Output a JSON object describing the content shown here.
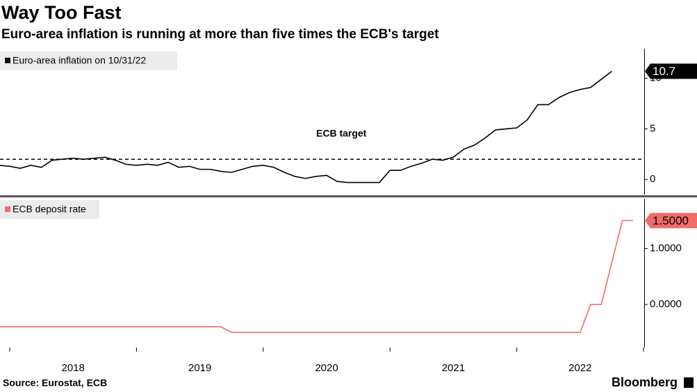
{
  "title": "Way Too Fast",
  "subtitle": "Euro-area inflation is running at more than five times the ECB's target",
  "source": "Source: Eurostat, ECB",
  "brand": "Bloomberg",
  "chart_data": [
    {
      "type": "line",
      "x": [
        "2017-12",
        "2018-01",
        "2018-02",
        "2018-03",
        "2018-04",
        "2018-05",
        "2018-06",
        "2018-07",
        "2018-08",
        "2018-09",
        "2018-10",
        "2018-11",
        "2018-12",
        "2019-01",
        "2019-02",
        "2019-03",
        "2019-04",
        "2019-05",
        "2019-06",
        "2019-07",
        "2019-08",
        "2019-09",
        "2019-10",
        "2019-11",
        "2019-12",
        "2020-01",
        "2020-02",
        "2020-03",
        "2020-04",
        "2020-05",
        "2020-06",
        "2020-07",
        "2020-08",
        "2020-09",
        "2020-10",
        "2020-11",
        "2020-12",
        "2021-01",
        "2021-02",
        "2021-03",
        "2021-04",
        "2021-05",
        "2021-06",
        "2021-07",
        "2021-08",
        "2021-09",
        "2021-10",
        "2021-11",
        "2021-12",
        "2022-01",
        "2022-02",
        "2022-03",
        "2022-04",
        "2022-05",
        "2022-06",
        "2022-07",
        "2022-08",
        "2022-09",
        "2022-10"
      ],
      "series": [
        {
          "name": "Euro-area inflation on 10/31/22",
          "color": "#000000",
          "values": [
            1.4,
            1.3,
            1.1,
            1.4,
            1.2,
            1.9,
            2.0,
            2.1,
            2.0,
            2.1,
            2.2,
            1.9,
            1.5,
            1.4,
            1.5,
            1.4,
            1.7,
            1.2,
            1.3,
            1.0,
            1.0,
            0.8,
            0.7,
            1.0,
            1.3,
            1.4,
            1.2,
            0.7,
            0.3,
            0.1,
            0.3,
            0.4,
            -0.2,
            -0.3,
            -0.3,
            -0.3,
            -0.3,
            0.9,
            0.9,
            1.3,
            1.6,
            2.0,
            1.9,
            2.2,
            3.0,
            3.4,
            4.1,
            4.9,
            5.0,
            5.1,
            5.9,
            7.4,
            7.4,
            8.1,
            8.6,
            8.9,
            9.1,
            9.9,
            10.7
          ]
        }
      ],
      "ylim": [
        -1.5,
        12.8
      ],
      "yticks": [
        0,
        5,
        10
      ],
      "target": {
        "value": 2,
        "label": "ECB target"
      }
    },
    {
      "type": "line",
      "x": [
        "2017-12",
        "2018-01",
        "2018-02",
        "2018-03",
        "2018-04",
        "2018-05",
        "2018-06",
        "2018-07",
        "2018-08",
        "2018-09",
        "2018-10",
        "2018-11",
        "2018-12",
        "2019-01",
        "2019-02",
        "2019-03",
        "2019-04",
        "2019-05",
        "2019-06",
        "2019-07",
        "2019-08",
        "2019-09",
        "2019-10",
        "2019-11",
        "2019-12",
        "2020-01",
        "2020-02",
        "2020-03",
        "2020-04",
        "2020-05",
        "2020-06",
        "2020-07",
        "2020-08",
        "2020-09",
        "2020-10",
        "2020-11",
        "2020-12",
        "2021-01",
        "2021-02",
        "2021-03",
        "2021-04",
        "2021-05",
        "2021-06",
        "2021-07",
        "2021-08",
        "2021-09",
        "2021-10",
        "2021-11",
        "2021-12",
        "2022-01",
        "2022-02",
        "2022-03",
        "2022-04",
        "2022-05",
        "2022-06",
        "2022-07",
        "2022-08",
        "2022-09",
        "2022-10",
        "2022-11",
        "2022-12"
      ],
      "series": [
        {
          "name": "ECB deposit rate",
          "color": "#f26b6b",
          "values": [
            -0.4,
            -0.4,
            -0.4,
            -0.4,
            -0.4,
            -0.4,
            -0.4,
            -0.4,
            -0.4,
            -0.4,
            -0.4,
            -0.4,
            -0.4,
            -0.4,
            -0.4,
            -0.4,
            -0.4,
            -0.4,
            -0.4,
            -0.4,
            -0.4,
            -0.4,
            -0.5,
            -0.5,
            -0.5,
            -0.5,
            -0.5,
            -0.5,
            -0.5,
            -0.5,
            -0.5,
            -0.5,
            -0.5,
            -0.5,
            -0.5,
            -0.5,
            -0.5,
            -0.5,
            -0.5,
            -0.5,
            -0.5,
            -0.5,
            -0.5,
            -0.5,
            -0.5,
            -0.5,
            -0.5,
            -0.5,
            -0.5,
            -0.5,
            -0.5,
            -0.5,
            -0.5,
            -0.5,
            -0.5,
            -0.5,
            0,
            0,
            0.75,
            1.5,
            1.5
          ],
          "value_labels": [
            null,
            null,
            null,
            null,
            null,
            null,
            null,
            null,
            null,
            null,
            null,
            null,
            null,
            null,
            null,
            null,
            null,
            null,
            null,
            null,
            null,
            null,
            null,
            null,
            null,
            null,
            null,
            null,
            null,
            null,
            null,
            null,
            null,
            null,
            null,
            null,
            null,
            null,
            null,
            null,
            null,
            null,
            null,
            null,
            null,
            null,
            null,
            null,
            null,
            null,
            null,
            null,
            null,
            null,
            null,
            null,
            null,
            null,
            null,
            null,
            "1.5000"
          ]
        }
      ],
      "ylim": [
        -0.77,
        1.89
      ],
      "yticks": [
        {
          "value": 1,
          "label": "1.0000"
        },
        {
          "value": 0,
          "label": "0.0000"
        }
      ],
      "xticks": [
        2018,
        2019,
        2020,
        2021,
        2022
      ]
    }
  ]
}
